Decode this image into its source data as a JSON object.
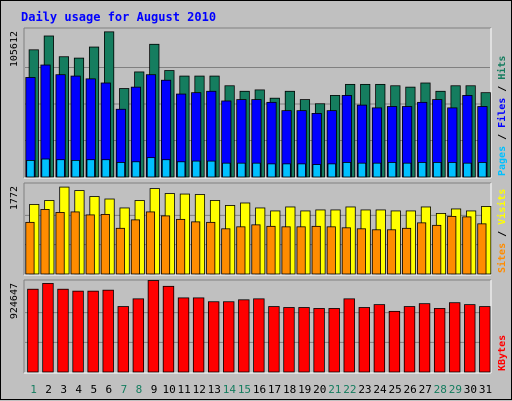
{
  "chart_data": {
    "title": "Daily usage for August 2010",
    "type": "bar",
    "categories": [
      "1",
      "2",
      "3",
      "4",
      "5",
      "6",
      "7",
      "8",
      "9",
      "10",
      "11",
      "12",
      "13",
      "14",
      "15",
      "16",
      "17",
      "18",
      "19",
      "20",
      "21",
      "22",
      "23",
      "24",
      "25",
      "26",
      "27",
      "28",
      "29",
      "30",
      "31"
    ],
    "weekend_days": [
      "1",
      "7",
      "8",
      "14",
      "15",
      "21",
      "22",
      "28",
      "29"
    ],
    "colors": {
      "title": "#0000ff",
      "hits": "#157d5f",
      "files": "#0000ff",
      "pages": "#00c0ff",
      "visits": "#ffff00",
      "sites": "#ff8c00",
      "kbytes": "#ff0000",
      "weekend_label": "#157d5f",
      "weekday_label": "#000000"
    },
    "panels": [
      {
        "name": "hits-files-pages",
        "max_label": "105612",
        "legend": [
          {
            "text": "Pages",
            "color": "#00c0ff"
          },
          {
            "text": "Files",
            "color": "#0000ff"
          },
          {
            "text": "Hits",
            "color": "#157d5f"
          }
        ],
        "ylim": [
          0,
          105612
        ],
        "series": [
          {
            "name": "Hits",
            "values": [
              92000,
              102000,
              87000,
              86000,
              94000,
              105000,
              64000,
              76000,
              96000,
              77000,
              73000,
              73000,
              73000,
              66000,
              62000,
              63000,
              57000,
              62000,
              56000,
              53000,
              59000,
              67000,
              67000,
              67000,
              66000,
              65000,
              68000,
              62000,
              66000,
              66000,
              61000
            ]
          },
          {
            "name": "Files",
            "values": [
              72000,
              81000,
              74000,
              73000,
              71000,
              68000,
              49000,
              65000,
              74000,
              70000,
              60000,
              61000,
              62000,
              55000,
              56000,
              56000,
              54000,
              48000,
              48000,
              46000,
              48000,
              59000,
              52000,
              50000,
              51000,
              51000,
              54000,
              56000,
              50000,
              59000,
              51000
            ]
          },
          {
            "name": "Pages",
            "values": [
              12000,
              13000,
              12500,
              12000,
              12500,
              12500,
              10500,
              11000,
              14000,
              12500,
              11000,
              11500,
              11500,
              10000,
              10000,
              10000,
              9500,
              9500,
              9500,
              9000,
              9500,
              10500,
              10000,
              10000,
              10500,
              10000,
              10500,
              10500,
              10500,
              10000,
              10500
            ]
          }
        ]
      },
      {
        "name": "visits-sites",
        "max_label": "1772",
        "legend": [
          {
            "text": "Sites",
            "color": "#ff8c00"
          },
          {
            "text": "Visits",
            "color": "#ffff00"
          }
        ],
        "ylim": [
          0,
          1772
        ],
        "series": [
          {
            "name": "Visits",
            "values": [
              1400,
              1480,
              1750,
              1680,
              1560,
              1510,
              1330,
              1480,
              1720,
              1620,
              1610,
              1600,
              1480,
              1380,
              1430,
              1330,
              1270,
              1350,
              1270,
              1290,
              1290,
              1350,
              1290,
              1290,
              1270,
              1270,
              1350,
              1220,
              1310,
              1270,
              1360
            ]
          },
          {
            "name": "Sites",
            "values": [
              1040,
              1300,
              1240,
              1250,
              1190,
              1200,
              920,
              1090,
              1250,
              1170,
              1100,
              1050,
              1040,
              910,
              950,
              990,
              960,
              950,
              950,
              960,
              950,
              930,
              910,
              890,
              890,
              920,
              1030,
              980,
              1160,
              1150,
              1010
            ]
          }
        ]
      },
      {
        "name": "kbytes",
        "max_label": "924647",
        "legend": [
          {
            "text": "KBytes",
            "color": "#ff0000"
          }
        ],
        "ylim": [
          0,
          924647
        ],
        "series": [
          {
            "name": "KBytes",
            "values": [
              860000,
              920000,
              860000,
              840000,
              840000,
              850000,
              680000,
              760000,
              950000,
              890000,
              770000,
              770000,
              730000,
              730000,
              750000,
              760000,
              680000,
              670000,
              670000,
              660000,
              660000,
              760000,
              670000,
              700000,
              630000,
              680000,
              710000,
              660000,
              720000,
              700000,
              680000
            ]
          }
        ]
      }
    ]
  }
}
